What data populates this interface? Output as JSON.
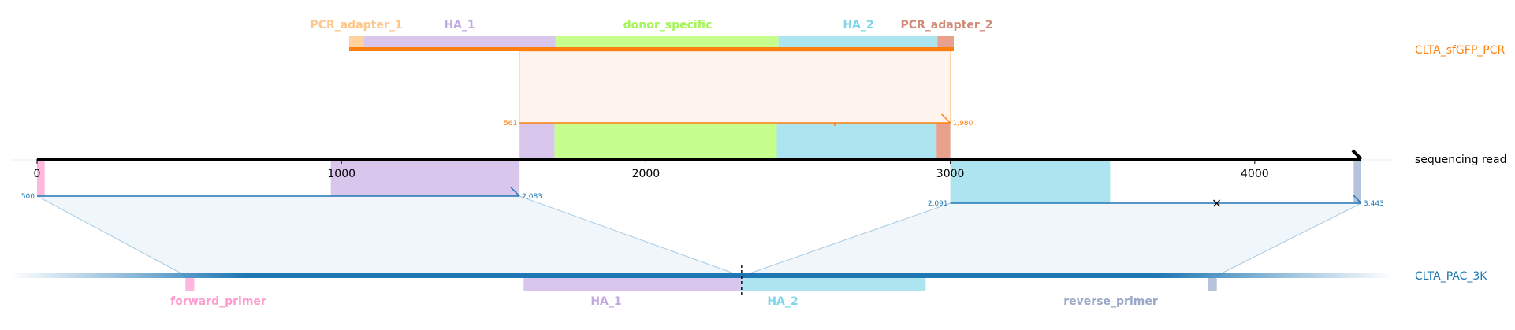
{
  "colors": {
    "pcr": "#ff7f0e",
    "pcr_fill": "#fff5ee",
    "pac": "#1f77b4",
    "pac_fill": "#f0f6fa",
    "pcr_adapter_1": "#ffd39b",
    "pcr_adapter_2": "#e7a18c",
    "ha_1": "#d8c6ec",
    "ha_2": "#ace4ef",
    "donor_specific": "#c7ff8f",
    "forward_primer": "#ffb8dc",
    "reverse_primer": "#b7c2db",
    "label_pcr_adapter_1": "#ffc68a",
    "label_pcr_adapter_2": "#d28a78",
    "label_ha_1": "#c3a9e3",
    "label_ha_2": "#7dd6ea",
    "label_donor_specific": "#a6f55a",
    "label_forward_primer": "#ff9ccf",
    "label_reverse_primer": "#9aa8c8"
  },
  "tracks": {
    "pcr_name": "CLTA_sfGFP_PCR",
    "read_name": "sequencing read",
    "pac_name": "CLTA_PAC_3K"
  },
  "read_axis": {
    "ticks": [
      0,
      1000,
      2000,
      3000,
      4000
    ],
    "tick_labels": [
      "0",
      "1000",
      "2000",
      "3000",
      "4000"
    ],
    "length": 4350
  },
  "pcr_features": [
    {
      "name": "PCR_adapter_1",
      "key": "pcr_adapter_1",
      "start": 0,
      "end": 47,
      "show_label": true
    },
    {
      "name": "HA_1",
      "key": "ha_1",
      "start": 47,
      "end": 676,
      "show_label": true
    },
    {
      "name": "donor_specific",
      "key": "donor_specific",
      "start": 676,
      "end": 1406,
      "show_label": true
    },
    {
      "name": "HA_2",
      "key": "ha_2",
      "start": 1406,
      "end": 1927,
      "show_label": true
    },
    {
      "name": "PCR_adapter_2",
      "key": "pcr_adapter_2",
      "start": 1927,
      "end": 1980,
      "show_label": true
    }
  ],
  "pcr_alignment": {
    "label_start": "561",
    "label_end": "1,980",
    "query_start": 561,
    "query_end": 1980,
    "read_start": 1585,
    "read_end": 3000,
    "tick_at": 2620
  },
  "read_features_top": [
    {
      "key": "ha_1",
      "start": 1585,
      "end": 1700
    },
    {
      "key": "donor_specific",
      "start": 1700,
      "end": 2430
    },
    {
      "key": "ha_2",
      "start": 2430,
      "end": 2955
    },
    {
      "key": "pcr_adapter_2",
      "start": 2955,
      "end": 3000
    }
  ],
  "pac_alignments": [
    {
      "label_start": "500",
      "label_end": "2,083",
      "read_start": 0,
      "read_end": 1585,
      "ref_start": 500,
      "ref_end": 2083,
      "features": [
        {
          "key": "forward_primer",
          "start": 0,
          "end": 25
        },
        {
          "key": "ha_1",
          "start": 965,
          "end": 1585
        }
      ]
    },
    {
      "label_start": "2,091",
      "label_end": "3,443",
      "read_start": 3000,
      "read_end": 4350,
      "ref_start": 2091,
      "ref_end": 3443,
      "mismatch_at": 3875,
      "features": [
        {
          "key": "ha_2",
          "start": 3000,
          "end": 3525
        },
        {
          "key": "reverse_primer",
          "start": 4325,
          "end": 4350
        }
      ]
    }
  ],
  "pac_features": [
    {
      "name": "forward_primer",
      "key": "forward_primer",
      "start": 500,
      "end": 525
    },
    {
      "name": "HA_1",
      "key": "ha_1",
      "start": 1465,
      "end": 2087
    },
    {
      "name": "HA_2",
      "key": "ha_2",
      "start": 2087,
      "end": 2612
    },
    {
      "name": "reverse_primer",
      "key": "reverse_primer",
      "start": 3418,
      "end": 3443
    }
  ],
  "pac_cut_site": 2087,
  "pac_extent": [
    0,
    3943
  ]
}
